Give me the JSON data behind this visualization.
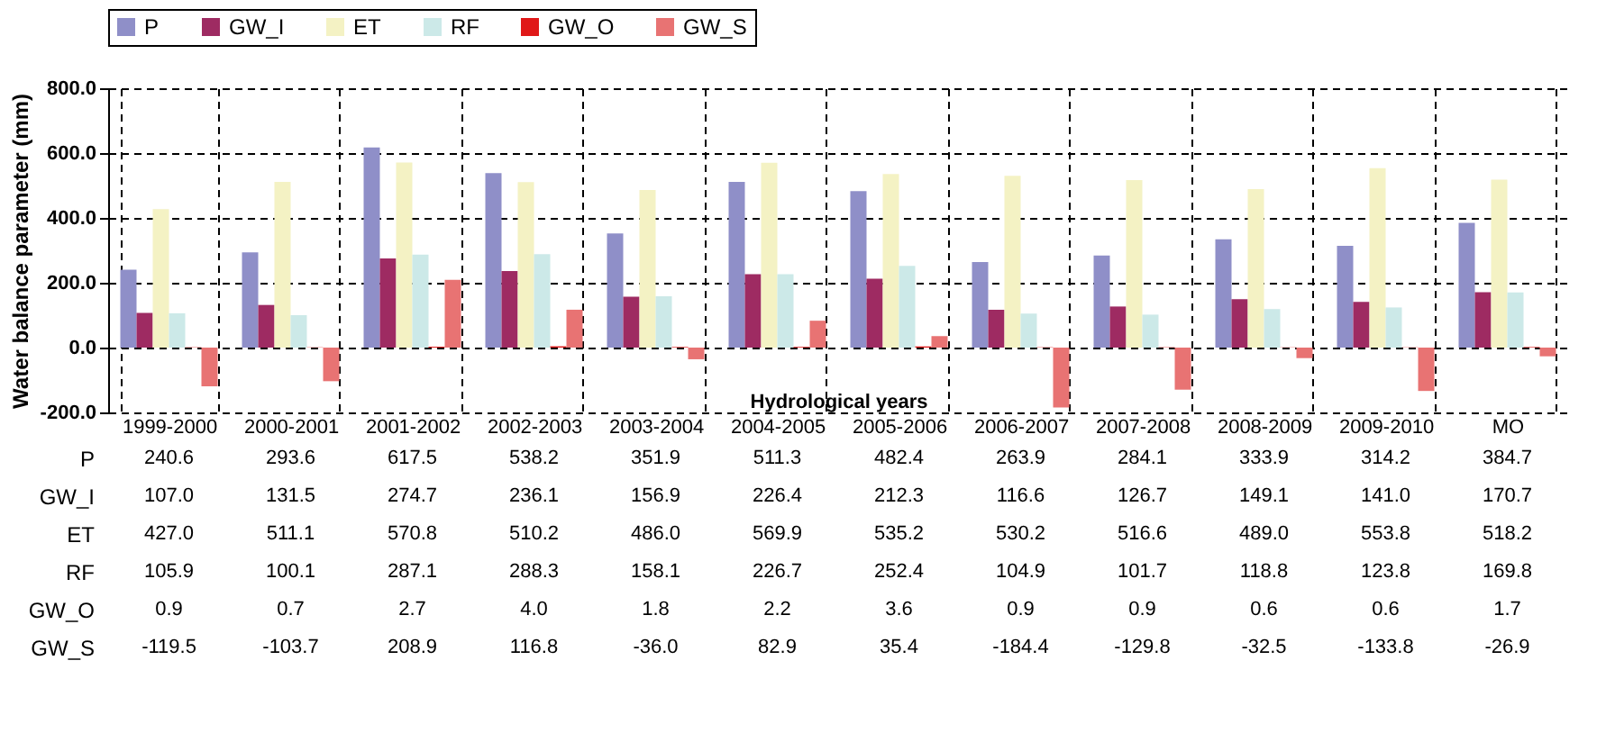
{
  "chart_data": {
    "type": "bar",
    "xlabel": "Hydrological years",
    "ylabel": "Water balance parameter (mm)",
    "categories": [
      "1999-2000",
      "2000-2001",
      "2001-2002",
      "2002-2003",
      "2003-2004",
      "2004-2005",
      "2005-2006",
      "2006-2007",
      "2007-2008",
      "2008-2009",
      "2009-2010",
      "MO"
    ],
    "series": [
      {
        "name": "P",
        "color": "#8f8fc8",
        "values": [
          240.6,
          293.6,
          617.5,
          538.2,
          351.9,
          511.3,
          482.4,
          263.9,
          284.1,
          333.9,
          314.2,
          384.7
        ],
        "value_labels": [
          "240.6",
          "293.6",
          "617.5",
          "538.2",
          "351.9",
          "511.3",
          "482.4",
          "263.9",
          "284.1",
          "333.9",
          "314.2",
          "384.7"
        ]
      },
      {
        "name": "GW_I",
        "color": "#9e2b62",
        "values": [
          107.0,
          131.5,
          274.7,
          236.1,
          156.9,
          226.4,
          212.3,
          116.6,
          126.7,
          149.1,
          141.0,
          170.7
        ],
        "value_labels": [
          "107.0",
          "131.5",
          "274.7",
          "236.1",
          "156.9",
          "226.4",
          "212.3",
          "116.6",
          "126.7",
          "149.1",
          "141.0",
          "170.7"
        ]
      },
      {
        "name": "ET",
        "color": "#f4f2c4",
        "values": [
          427.0,
          511.1,
          570.8,
          510.2,
          486.0,
          569.9,
          535.2,
          530.2,
          516.6,
          489.0,
          553.8,
          518.2
        ],
        "value_labels": [
          "427.0",
          "511.1",
          "570.8",
          "510.2",
          "486.0",
          "569.9",
          "535.2",
          "530.2",
          "516.6",
          "489.0",
          "553.8",
          "518.2"
        ]
      },
      {
        "name": "RF",
        "color": "#cce9e8",
        "values": [
          105.9,
          100.1,
          287.1,
          288.3,
          158.1,
          226.7,
          252.4,
          104.9,
          101.7,
          118.8,
          123.8,
          169.8
        ],
        "value_labels": [
          "105.9",
          "100.1",
          "287.1",
          "288.3",
          "158.1",
          "226.7",
          "252.4",
          "104.9",
          "101.7",
          "118.8",
          "123.8",
          "169.8"
        ]
      },
      {
        "name": "GW_O",
        "color": "#e01818",
        "values": [
          0.9,
          0.7,
          2.7,
          4.0,
          1.8,
          2.2,
          3.6,
          0.9,
          0.9,
          0.6,
          0.6,
          1.7
        ],
        "value_labels": [
          "0.9",
          "0.7",
          "2.7",
          "4.0",
          "1.8",
          "2.2",
          "3.6",
          "0.9",
          "0.9",
          "0.6",
          "0.6",
          "1.7"
        ]
      },
      {
        "name": "GW_S",
        "color": "#e87373",
        "values": [
          -119.5,
          -103.7,
          208.9,
          116.8,
          -36.0,
          82.9,
          35.4,
          -184.4,
          -129.8,
          -32.5,
          -133.8,
          -26.9
        ],
        "value_labels": [
          "-119.5",
          "-103.7",
          "208.9",
          "116.8",
          "-36.0",
          "82.9",
          "35.4",
          "-184.4",
          "-129.8",
          "-32.5",
          "-133.8",
          "-26.9"
        ]
      }
    ],
    "ylim": [
      -200,
      800
    ],
    "yticks": [
      {
        "value": -200,
        "label": "-200.0"
      },
      {
        "value": 0,
        "label": "0.0"
      },
      {
        "value": 200,
        "label": "200.0"
      },
      {
        "value": 400,
        "label": "400.0"
      },
      {
        "value": 600,
        "label": "600.0"
      },
      {
        "value": 800,
        "label": "800.0"
      }
    ],
    "grid": true,
    "legend": "top"
  }
}
